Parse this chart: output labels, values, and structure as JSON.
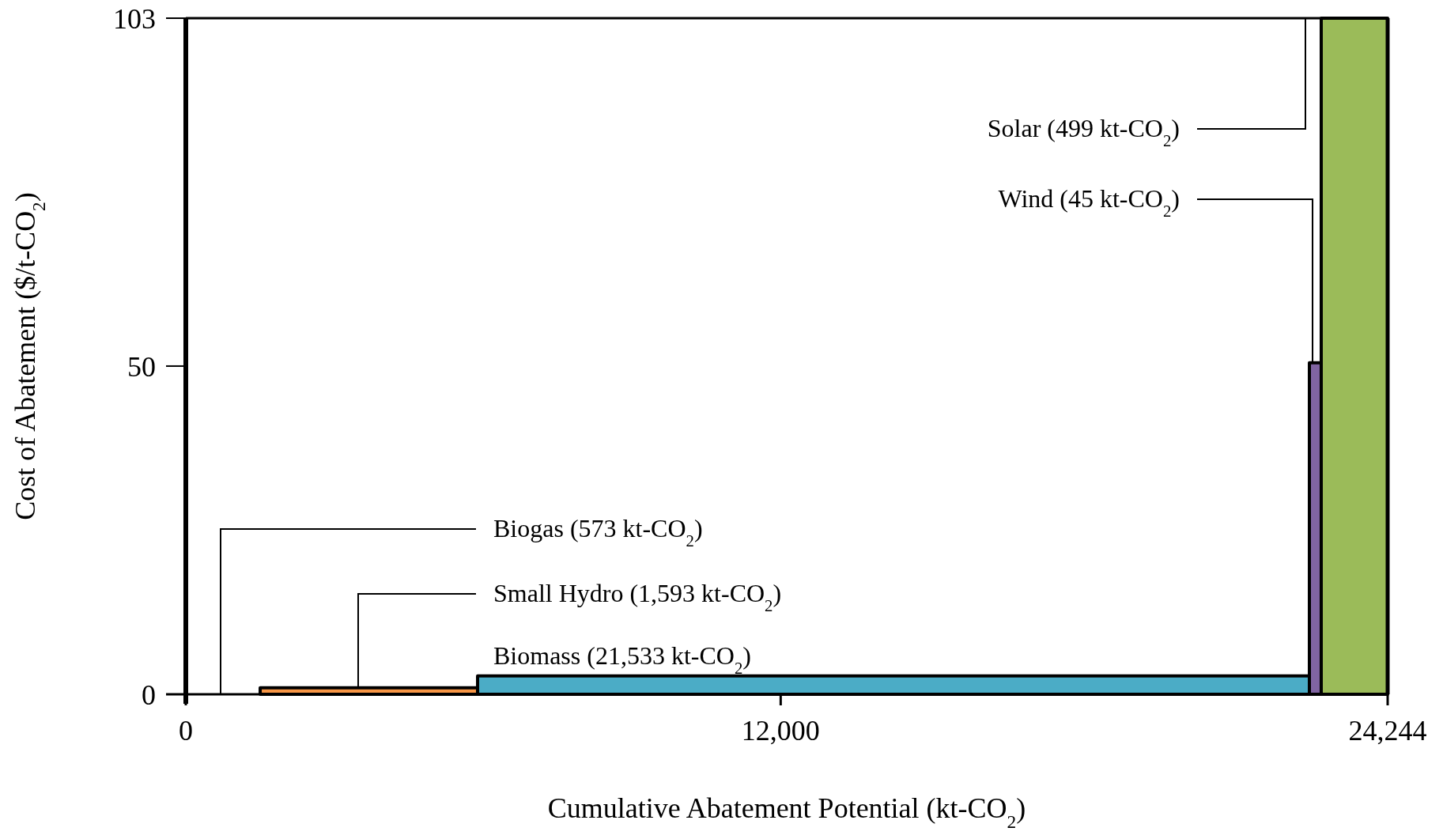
{
  "chart_data": {
    "type": "area",
    "xlabel": "Cumulative Abatement Potential (kt-CO$_{2}$)",
    "ylabel": "Cost of Abatement ($/t-CO$_{2}$)",
    "xlim": [
      0,
      24244
    ],
    "xticks": [
      0,
      {
        "value": 12000,
        "label": "12,000"
      },
      {
        "value": 24244,
        "label": "24,244"
      }
    ],
    "ylim": [
      0,
      103
    ],
    "yticks": [
      0,
      50,
      103
    ],
    "grid": false,
    "series": [
      {
        "color": "#f79646",
        "x": [
          1500,
          5886
        ],
        "values": [
          1,
          1
        ]
      },
      {
        "color": "#4bacc6",
        "x": [
          5886,
          22665
        ],
        "values": [
          2.8,
          2.8
        ]
      },
      {
        "color": "#8064a2",
        "x": [
          22665,
          22904
        ],
        "values": [
          50.5,
          50.5
        ]
      },
      {
        "color": "#9bbb59",
        "x": [
          22904,
          24244
        ],
        "values": [
          103,
          103
        ]
      }
    ],
    "annotations": [
      "Biogas (573 kt-CO$_{2}$)",
      {
        "text": "Small Hydro (1,593 kt-CO$_{2}$)",
        "x": 3477,
        "y": 1
      },
      {
        "text": "Biomass (21,533 kt-CO$_{2}$)"
      },
      "Solar (499 kt-CO$_{2}$)",
      {
        "text": "Wind (45 kt-CO$_{2}$)",
        "x": 22729,
        "y": 50.5
      }
    ]
  }
}
